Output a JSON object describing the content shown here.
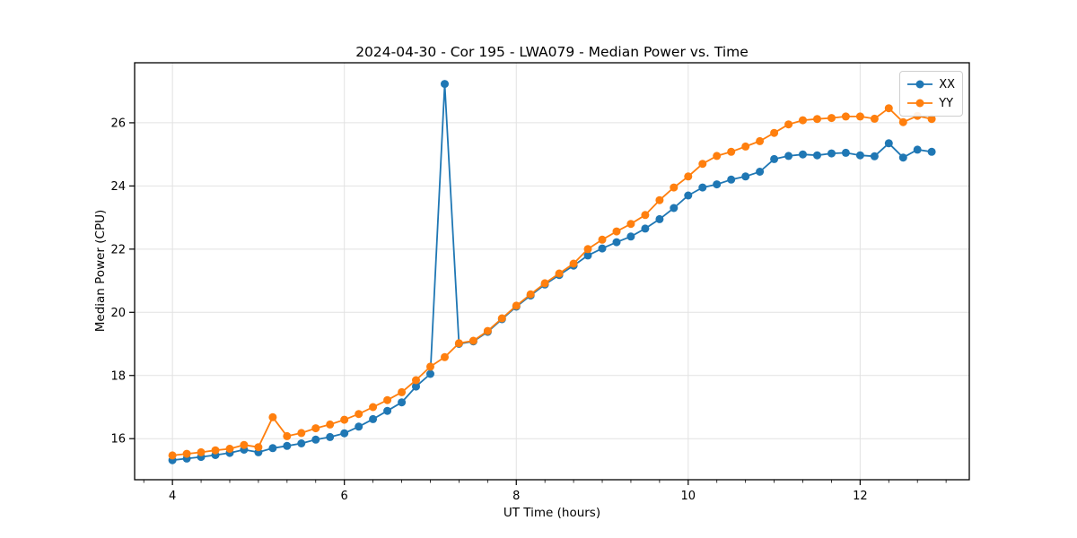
{
  "figure": {
    "background": "#ffffff"
  },
  "chart_data": {
    "type": "line",
    "title": "2024-04-30 - Cor 195 - LWA079 - Median Power vs. Time",
    "xlabel": "UT Time (hours)",
    "ylabel": "Median Power (CPU)",
    "xlim": [
      3.56,
      13.27
    ],
    "ylim": [
      14.7,
      27.9
    ],
    "xticks": [
      4,
      6,
      8,
      10,
      12
    ],
    "yticks": [
      16,
      18,
      20,
      22,
      24,
      26
    ],
    "x_minor_step": 0.33333,
    "grid": true,
    "grid_color": "#e2e2e2",
    "legend_position": "upper right",
    "x": [
      4.0,
      4.167,
      4.333,
      4.5,
      4.667,
      4.833,
      5.0,
      5.167,
      5.333,
      5.5,
      5.667,
      5.833,
      6.0,
      6.167,
      6.333,
      6.5,
      6.667,
      6.833,
      7.0,
      7.167,
      7.333,
      7.5,
      7.667,
      7.833,
      8.0,
      8.167,
      8.333,
      8.5,
      8.667,
      8.833,
      9.0,
      9.167,
      9.333,
      9.5,
      9.667,
      9.833,
      10.0,
      10.167,
      10.333,
      10.5,
      10.667,
      10.833,
      11.0,
      11.167,
      11.333,
      11.5,
      11.667,
      11.833,
      12.0,
      12.167,
      12.333,
      12.5,
      12.667,
      12.833
    ],
    "series": [
      {
        "name": "XX",
        "color": "#1f77b4",
        "values": [
          15.32,
          15.37,
          15.42,
          15.48,
          15.55,
          15.65,
          15.57,
          15.7,
          15.77,
          15.85,
          15.97,
          16.05,
          16.17,
          16.38,
          16.62,
          16.88,
          17.15,
          17.65,
          18.05,
          27.23,
          19.0,
          19.08,
          19.38,
          19.78,
          20.18,
          20.53,
          20.88,
          21.18,
          21.48,
          21.8,
          22.02,
          22.22,
          22.4,
          22.65,
          22.95,
          23.3,
          23.7,
          23.95,
          24.05,
          24.2,
          24.3,
          24.45,
          24.85,
          24.95,
          25.0,
          24.97,
          25.03,
          25.05,
          24.97,
          24.94,
          25.35,
          24.9,
          25.15,
          25.08
        ]
      },
      {
        "name": "YY",
        "color": "#ff7f0e",
        "values": [
          15.47,
          15.52,
          15.57,
          15.63,
          15.68,
          15.8,
          15.73,
          16.68,
          16.08,
          16.18,
          16.33,
          16.45,
          16.6,
          16.78,
          17.0,
          17.22,
          17.47,
          17.85,
          18.28,
          18.58,
          19.02,
          19.1,
          19.41,
          19.81,
          20.21,
          20.57,
          20.92,
          21.23,
          21.54,
          22.0,
          22.3,
          22.56,
          22.8,
          23.08,
          23.55,
          23.95,
          24.3,
          24.7,
          24.95,
          25.08,
          25.25,
          25.42,
          25.68,
          25.95,
          26.08,
          26.12,
          26.15,
          26.2,
          26.2,
          26.13,
          26.46,
          26.02,
          26.22,
          26.12
        ]
      }
    ]
  }
}
